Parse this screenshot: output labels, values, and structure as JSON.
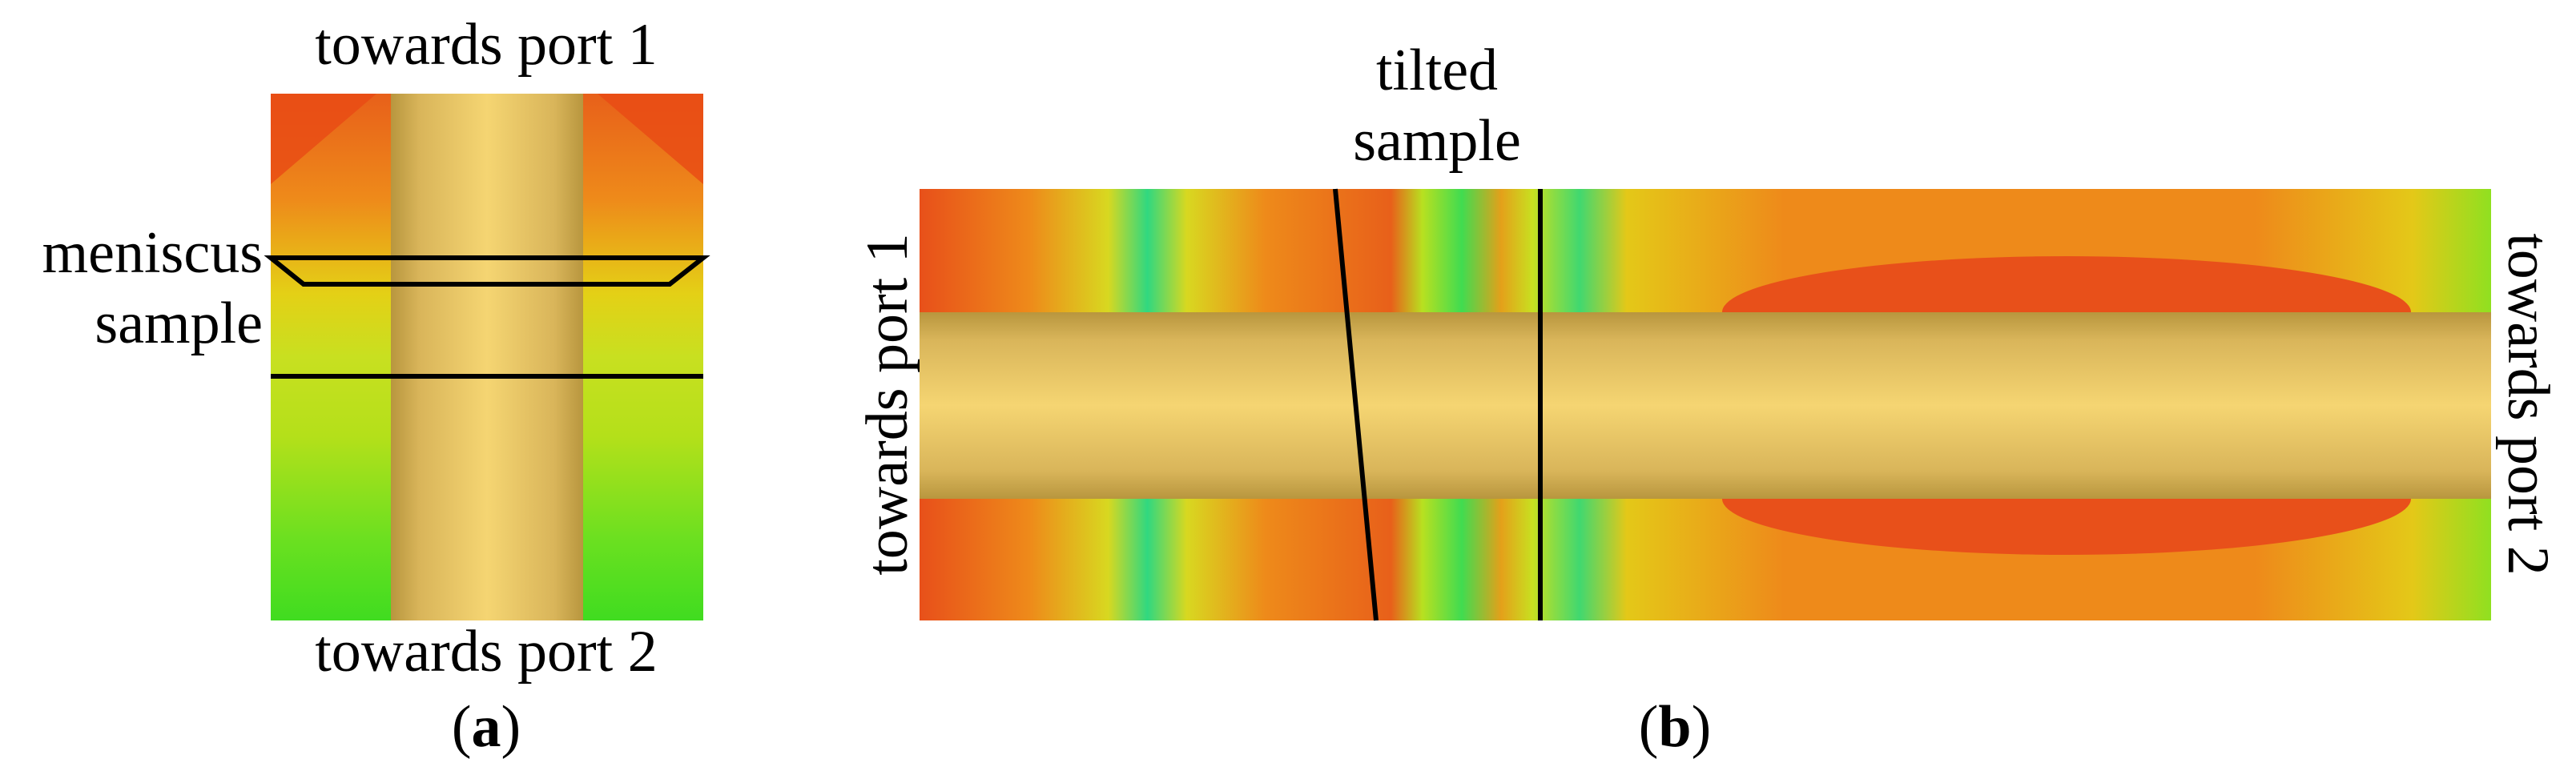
{
  "panel_a": {
    "top_label": "towards port 1",
    "bottom_label": "towards port 2",
    "side_label": [
      "meniscus",
      "sample"
    ],
    "caption": [
      "(",
      "a",
      ")"
    ]
  },
  "panel_b": {
    "top_label": [
      "tilted",
      "sample"
    ],
    "left_label": "towards port 1",
    "right_label": "towards port 2",
    "caption": [
      "(",
      "b",
      ")"
    ]
  }
}
